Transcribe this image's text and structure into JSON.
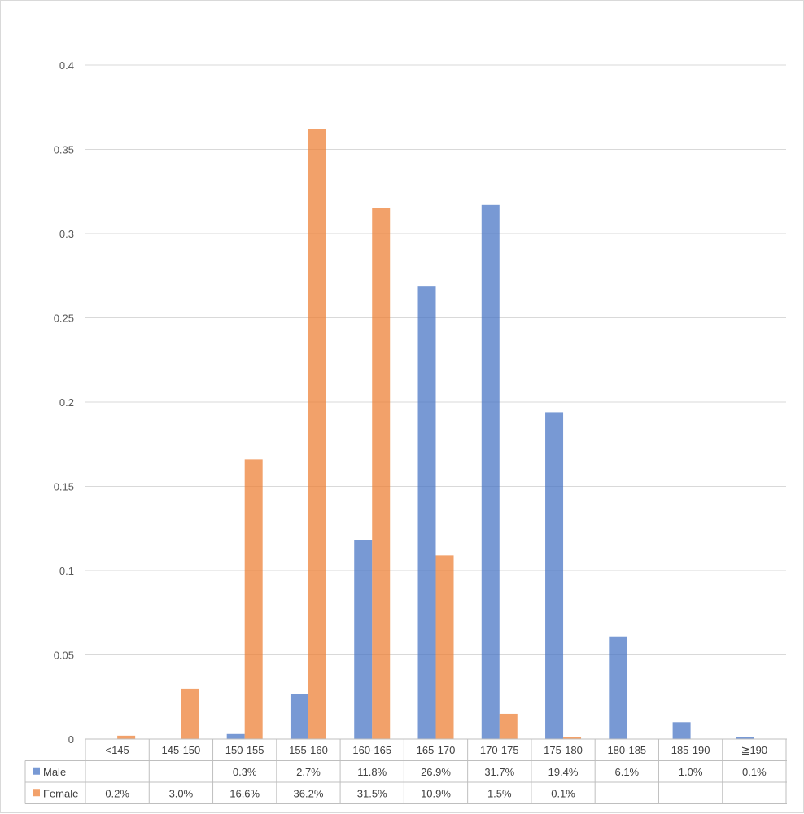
{
  "chart_data": {
    "type": "bar",
    "title": "",
    "xlabel": "",
    "ylabel": "",
    "ylim": [
      0,
      0.4
    ],
    "yticks": [
      0,
      0.05,
      0.1,
      0.15,
      0.2,
      0.25,
      0.3,
      0.35,
      0.4
    ],
    "ytick_labels": [
      "0",
      "0.05",
      "0.1",
      "0.15",
      "0.2",
      "0.25",
      "0.3",
      "0.35",
      "0.4"
    ],
    "grid": true,
    "legend": "data-table",
    "categories": [
      "<145",
      "145-150",
      "150-155",
      "155-160",
      "160-165",
      "165-170",
      "170-175",
      "175-180",
      "180-185",
      "185-190",
      "≧190"
    ],
    "series": [
      {
        "name": "Male",
        "color": "#4472C4",
        "values": [
          0,
          0,
          0.003,
          0.027,
          0.118,
          0.269,
          0.317,
          0.194,
          0.061,
          0.01,
          0.001
        ],
        "labels": [
          "",
          "",
          "0.3%",
          "2.7%",
          "11.8%",
          "26.9%",
          "31.7%",
          "19.4%",
          "6.1%",
          "1.0%",
          "0.1%"
        ]
      },
      {
        "name": "Female",
        "color": "#ED7D31",
        "values": [
          0.002,
          0.03,
          0.166,
          0.362,
          0.315,
          0.109,
          0.015,
          0.001,
          0,
          0,
          0
        ],
        "labels": [
          "0.2%",
          "3.0%",
          "16.6%",
          "36.2%",
          "31.5%",
          "10.9%",
          "1.5%",
          "0.1%",
          "",
          "",
          ""
        ]
      }
    ]
  }
}
